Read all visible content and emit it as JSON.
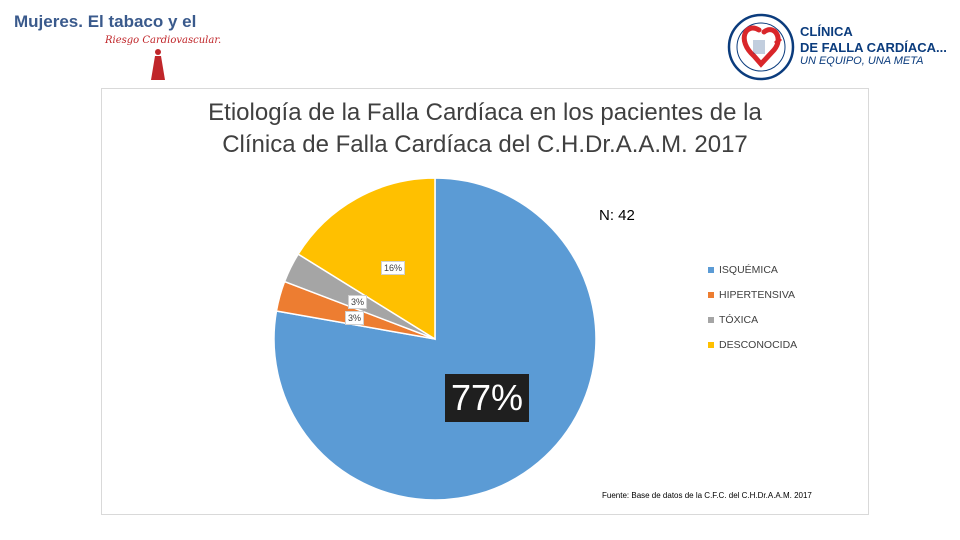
{
  "header": {
    "brand_title": "Mujeres. El tabaco y el",
    "brand_subtitle": "Riesgo Cardiovascular.",
    "clinic_line1": "CLÍNICA",
    "clinic_line2": "DE FALLA CARDÍACA...",
    "clinic_slogan": "UN EQUIPO, UNA META",
    "colors": {
      "brand": "#3a5a8c",
      "accent_red": "#c0262a",
      "clinic_blue": "#0b3c7d"
    },
    "icons": [
      "woman-figure-icon",
      "clinic-seal-icon",
      "heart-icon"
    ]
  },
  "chart_data": {
    "type": "pie",
    "title_lines": [
      "Etiología de la Falla Cardíaca en los pacientes de la",
      "Clínica de Falla Cardíaca del C.H.Dr.A.A.M. 2017"
    ],
    "n_label": "N: 42",
    "categories": [
      "ISQUÉMICA",
      "HIPERTENSIVA",
      "TÓXICA",
      "DESCONOCIDA"
    ],
    "values": [
      77,
      3,
      3,
      16
    ],
    "labels": [
      "77%",
      "3%",
      "3%",
      "16%"
    ],
    "colors": [
      "#5b9bd5",
      "#ed7d31",
      "#a5a5a5",
      "#ffc000"
    ],
    "legend_position": "right",
    "source": "Fuente: Base de datos de la C.F.C. del C.H.Dr.A.A.M. 2017"
  }
}
